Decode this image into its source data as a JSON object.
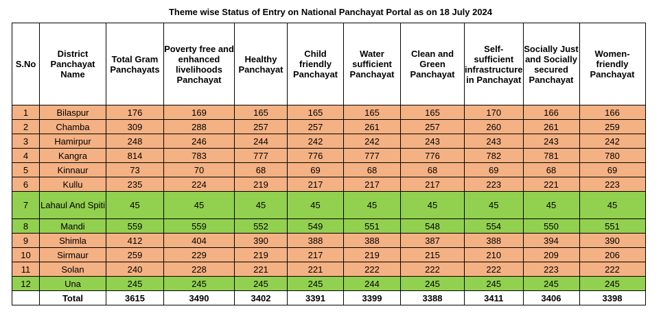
{
  "title": "Theme wise Status of Entry on National Panchayat Portal as on 18 July 2024",
  "headers": [
    "S.No",
    "District Panchayat Name",
    "Total Gram Panchayats",
    "Poverty free and enhanced livelihoods Panchayat",
    "Healthy Panchayat",
    "Child friendly Panchayat",
    "Water sufficient Panchayat",
    "Clean and Green Panchayat",
    "Self-sufficient infrastructure in Panchayat",
    "Socially Just and Socially secured Panchayat",
    "Women-friendly Panchayat"
  ],
  "rows": [
    {
      "sno": "1",
      "name": "Bilaspur",
      "status": "salmon",
      "values": [
        "176",
        "169",
        "165",
        "165",
        "165",
        "165",
        "170",
        "166",
        "166"
      ]
    },
    {
      "sno": "2",
      "name": "Chamba",
      "status": "salmon",
      "values": [
        "309",
        "288",
        "257",
        "257",
        "261",
        "257",
        "260",
        "261",
        "259"
      ]
    },
    {
      "sno": "3",
      "name": "Hamirpur",
      "status": "salmon",
      "values": [
        "248",
        "246",
        "244",
        "242",
        "242",
        "243",
        "243",
        "243",
        "242"
      ]
    },
    {
      "sno": "4",
      "name": "Kangra",
      "status": "salmon",
      "values": [
        "814",
        "783",
        "777",
        "776",
        "777",
        "776",
        "782",
        "781",
        "780"
      ]
    },
    {
      "sno": "5",
      "name": "Kinnaur",
      "status": "salmon",
      "values": [
        "73",
        "70",
        "68",
        "69",
        "68",
        "68",
        "69",
        "68",
        "69"
      ]
    },
    {
      "sno": "6",
      "name": "Kullu",
      "status": "salmon",
      "values": [
        "235",
        "224",
        "219",
        "217",
        "217",
        "217",
        "223",
        "221",
        "223"
      ]
    },
    {
      "sno": "7",
      "name": "Lahaul And Spiti",
      "status": "green",
      "values": [
        "45",
        "45",
        "45",
        "45",
        "45",
        "45",
        "45",
        "45",
        "45"
      ]
    },
    {
      "sno": "8",
      "name": "Mandi",
      "status": "green",
      "values": [
        "559",
        "559",
        "552",
        "549",
        "551",
        "548",
        "554",
        "550",
        "551"
      ]
    },
    {
      "sno": "9",
      "name": "Shimla",
      "status": "salmon",
      "values": [
        "412",
        "404",
        "390",
        "388",
        "388",
        "387",
        "388",
        "394",
        "390"
      ]
    },
    {
      "sno": "10",
      "name": "Sirmaur",
      "status": "salmon",
      "values": [
        "259",
        "229",
        "219",
        "217",
        "219",
        "215",
        "210",
        "209",
        "206"
      ]
    },
    {
      "sno": "11",
      "name": "Solan",
      "status": "salmon",
      "values": [
        "240",
        "228",
        "221",
        "221",
        "222",
        "222",
        "222",
        "223",
        "222"
      ]
    },
    {
      "sno": "12",
      "name": "Una",
      "status": "green",
      "values": [
        "245",
        "245",
        "245",
        "245",
        "244",
        "245",
        "245",
        "245",
        "245"
      ]
    }
  ],
  "total": {
    "sno": "",
    "label": "Total",
    "values": [
      "3615",
      "3490",
      "3402",
      "3391",
      "3399",
      "3388",
      "3411",
      "3406",
      "3398"
    ]
  },
  "colors": {
    "salmon": "#f4b183",
    "green": "#92d050"
  }
}
